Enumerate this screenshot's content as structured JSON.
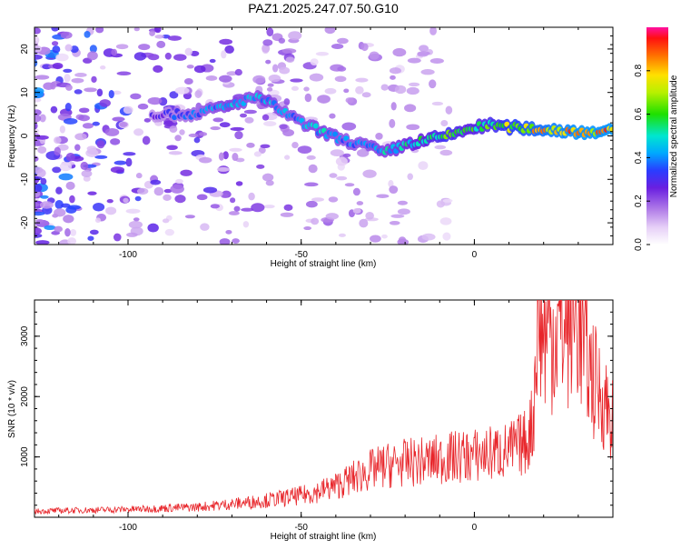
{
  "title": "PAZ1.2025.247.07.50.G10",
  "chart_data": [
    {
      "type": "heatmap",
      "xlabel": "Height of straight line (km)",
      "ylabel": "Frequency (Hz)",
      "xlim": [
        -127,
        40
      ],
      "ylim": [
        -25,
        25
      ],
      "x_ticks": [
        -100,
        -50,
        0
      ],
      "y_ticks": [
        -20,
        -10,
        0,
        10,
        20
      ],
      "colorbar": {
        "label": "Normalized spectral amplitude",
        "range": [
          0,
          1
        ],
        "ticks": [
          0.0,
          0.2,
          0.4,
          0.6,
          0.8
        ]
      },
      "ridge": {
        "x": [
          -93,
          -88,
          -82,
          -76,
          -70,
          -64,
          -60,
          -56,
          -50,
          -44,
          -38,
          -32,
          -26,
          -20,
          -14,
          -8,
          -2,
          4,
          10,
          20,
          30,
          40
        ],
        "freq": [
          5,
          5,
          5,
          6,
          7,
          9,
          8,
          6,
          3,
          1,
          -1,
          -2,
          -4,
          -2,
          -1,
          0,
          1.5,
          2.5,
          2,
          1.5,
          1,
          1
        ],
        "amplitude": [
          0.3,
          0.35,
          0.4,
          0.45,
          0.5,
          0.45,
          0.5,
          0.45,
          0.45,
          0.5,
          0.45,
          0.45,
          0.5,
          0.55,
          0.6,
          0.7,
          0.6,
          0.65,
          0.75,
          0.85,
          0.9,
          0.9
        ]
      }
    },
    {
      "type": "line",
      "xlabel": "Height of straight line (km)",
      "ylabel": "SNR (10 * v/v)",
      "xlim": [
        -127,
        40
      ],
      "ylim": [
        0,
        3600
      ],
      "x_ticks": [
        -100,
        -50,
        0
      ],
      "y_ticks": [
        1000,
        2000,
        3000
      ],
      "series": [
        {
          "color": "#e8262b",
          "x": [
            -127,
            -120,
            -110,
            -100,
            -90,
            -80,
            -70,
            -60,
            -55,
            -50,
            -45,
            -40,
            -35,
            -30,
            -25,
            -20,
            -15,
            -10,
            -5,
            0,
            5,
            10,
            15,
            17,
            18,
            20,
            25,
            30,
            32,
            35,
            38,
            40
          ],
          "y": [
            100,
            110,
            120,
            130,
            150,
            170,
            220,
            280,
            320,
            360,
            430,
            520,
            650,
            780,
            860,
            900,
            920,
            960,
            1000,
            1020,
            1060,
            1100,
            1250,
            1600,
            3200,
            3050,
            3100,
            3300,
            2700,
            2200,
            1900,
            1600
          ]
        }
      ]
    }
  ]
}
